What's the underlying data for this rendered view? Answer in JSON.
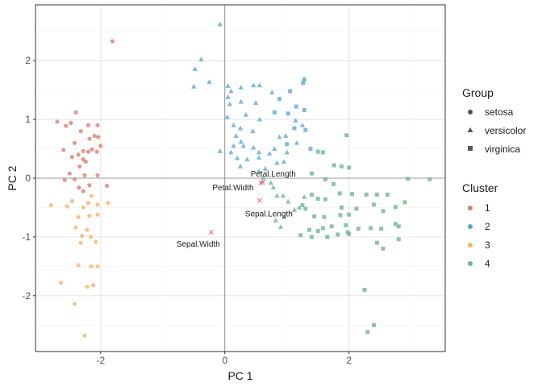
{
  "chart_data": {
    "type": "scatter",
    "xlabel": "PC 1",
    "ylabel": "PC 2",
    "xlim": [
      -3.05,
      3.55
    ],
    "ylim": [
      -2.95,
      2.95
    ],
    "xticks": [
      -2,
      0,
      2
    ],
    "yticks": [
      -2,
      -1,
      0,
      1,
      2
    ],
    "xtick_labels": [
      "-2",
      "0",
      "2"
    ],
    "ytick_labels": [
      "-2",
      "-1",
      "0",
      "1",
      "2"
    ],
    "grid": true,
    "reference_lines": {
      "x": 0,
      "y": 0
    },
    "colors": {
      "1": "#E07B6F",
      "2": "#5DA6D3",
      "3": "#F3B36B",
      "4": "#6DB38F",
      "loading": "#E0607A"
    },
    "legend": {
      "group_title": "Group",
      "groups": [
        {
          "label": "setosa",
          "shape": "circle"
        },
        {
          "label": "versicolor",
          "shape": "triangle"
        },
        {
          "label": "virginica",
          "shape": "square"
        }
      ],
      "cluster_title": "Cluster",
      "clusters": [
        {
          "label": "1",
          "color": "#E07B6F"
        },
        {
          "label": "2",
          "color": "#5DA6D3"
        },
        {
          "label": "3",
          "color": "#F3B36B"
        },
        {
          "label": "4",
          "color": "#6DB38F"
        }
      ]
    },
    "loadings": [
      {
        "label": "Petal.Length",
        "x": 0.61,
        "y": -0.07
      },
      {
        "label": "Petal.Width",
        "x": 0.58,
        "y": -0.08
      },
      {
        "label": "Sepal.Length",
        "x": 0.56,
        "y": -0.38
      },
      {
        "label": "Sepal.Width",
        "x": -0.22,
        "y": -0.92
      }
    ],
    "series": [
      {
        "name": "setosa / cluster 1",
        "group": "setosa",
        "cluster": "1",
        "points": [
          [
            -1.81,
            2.33
          ],
          [
            -2.7,
            0.96
          ],
          [
            -2.4,
            1.12
          ],
          [
            -2.56,
            0.89
          ],
          [
            -2.48,
            0.94
          ],
          [
            -2.2,
            0.9
          ],
          [
            -2.05,
            0.9
          ],
          [
            -2.32,
            0.8
          ],
          [
            -2.1,
            0.72
          ],
          [
            -2.04,
            0.7
          ],
          [
            -2.18,
            0.67
          ],
          [
            -2.42,
            0.6
          ],
          [
            -2.6,
            0.48
          ],
          [
            -2.28,
            0.46
          ],
          [
            -2.2,
            0.45
          ],
          [
            -2.14,
            0.49
          ],
          [
            -2.36,
            0.4
          ],
          [
            -2.46,
            0.36
          ],
          [
            -2.0,
            0.55
          ],
          [
            -2.28,
            0.32
          ],
          [
            -2.06,
            0.45
          ],
          [
            -2.34,
            0.2
          ],
          [
            -2.24,
            0.28
          ],
          [
            -2.5,
            0.08
          ],
          [
            -2.26,
            0.05
          ],
          [
            -2.05,
            0.05
          ],
          [
            -2.42,
            -0.02
          ],
          [
            -2.58,
            -0.03
          ],
          [
            -2.18,
            -0.12
          ],
          [
            -2.35,
            -0.16
          ],
          [
            -1.9,
            -0.13
          ],
          [
            -2.28,
            -0.22
          ]
        ]
      },
      {
        "name": "setosa / cluster 3",
        "group": "setosa",
        "cluster": "3",
        "points": [
          [
            -2.8,
            -0.46
          ],
          [
            -2.46,
            -0.39
          ],
          [
            -2.54,
            -0.48
          ],
          [
            -2.15,
            -0.3
          ],
          [
            -2.2,
            -0.42
          ],
          [
            -2.05,
            -0.45
          ],
          [
            -1.88,
            -0.42
          ],
          [
            -2.28,
            -0.5
          ],
          [
            -2.05,
            -0.62
          ],
          [
            -2.18,
            -0.64
          ],
          [
            -2.36,
            -0.66
          ],
          [
            -2.4,
            -0.84
          ],
          [
            -2.22,
            -0.88
          ],
          [
            -2.3,
            -0.98
          ],
          [
            -2.16,
            -1.0
          ],
          [
            -2.32,
            -1.1
          ],
          [
            -2.08,
            -1.08
          ],
          [
            -2.36,
            -1.48
          ],
          [
            -2.15,
            -1.5
          ],
          [
            -2.05,
            -1.5
          ],
          [
            -2.64,
            -1.78
          ],
          [
            -2.22,
            -1.85
          ],
          [
            -2.12,
            -1.82
          ],
          [
            -2.42,
            -2.14
          ],
          [
            -2.26,
            -2.68
          ]
        ]
      },
      {
        "name": "versicolor / cluster 2",
        "group": "versicolor",
        "cluster": "2",
        "points": [
          [
            -0.08,
            2.62
          ],
          [
            -0.38,
            2.02
          ],
          [
            -0.48,
            1.86
          ],
          [
            -0.5,
            1.56
          ],
          [
            -0.25,
            1.64
          ],
          [
            0.05,
            1.57
          ],
          [
            0.26,
            1.54
          ],
          [
            0.1,
            1.48
          ],
          [
            0.46,
            1.58
          ],
          [
            0.56,
            1.58
          ],
          [
            0.76,
            1.46
          ],
          [
            0.05,
            1.38
          ],
          [
            0.08,
            1.26
          ],
          [
            0.26,
            1.3
          ],
          [
            0.5,
            1.28
          ],
          [
            0.34,
            1.08
          ],
          [
            0.56,
            1.0
          ],
          [
            0.04,
            1.04
          ],
          [
            0.14,
            0.9
          ],
          [
            0.25,
            0.85
          ],
          [
            0.45,
            0.8
          ],
          [
            0.18,
            0.72
          ],
          [
            0.26,
            0.62
          ],
          [
            0.14,
            0.55
          ],
          [
            0.3,
            0.55
          ],
          [
            0.46,
            0.52
          ],
          [
            0.55,
            0.44
          ],
          [
            0.1,
            0.44
          ],
          [
            -0.08,
            0.46
          ],
          [
            0.2,
            0.34
          ],
          [
            0.36,
            0.32
          ],
          [
            0.55,
            0.35
          ],
          [
            0.72,
            0.42
          ],
          [
            0.8,
            0.5
          ],
          [
            0.88,
            0.7
          ],
          [
            0.98,
            0.72
          ],
          [
            1.14,
            0.98
          ],
          [
            1.25,
            0.9
          ],
          [
            1.0,
            0.44
          ],
          [
            1.16,
            0.6
          ],
          [
            0.25,
            0.2
          ],
          [
            0.55,
            0.12
          ],
          [
            0.65,
            0.16
          ],
          [
            0.84,
            0.26
          ],
          [
            0.95,
            0.28
          ]
        ]
      },
      {
        "name": "versicolor / cluster 4",
        "group": "versicolor",
        "cluster": "4",
        "points": [
          [
            0.62,
            0.0
          ],
          [
            0.74,
            -0.08
          ],
          [
            0.78,
            -0.16
          ],
          [
            0.84,
            -0.3
          ],
          [
            0.94,
            -0.3
          ],
          [
            1.02,
            -0.4
          ],
          [
            1.12,
            -0.54
          ],
          [
            0.82,
            -0.72
          ],
          [
            0.9,
            -0.83
          ],
          [
            0.96,
            -0.66
          ],
          [
            1.28,
            -0.32
          ],
          [
            1.2,
            -0.5
          ]
        ]
      },
      {
        "name": "virginica / cluster 2",
        "group": "virginica",
        "cluster": "2",
        "points": [
          [
            1.28,
            1.68
          ],
          [
            1.26,
            1.62
          ],
          [
            1.05,
            1.48
          ],
          [
            0.88,
            1.35
          ],
          [
            1.15,
            1.22
          ],
          [
            1.28,
            1.16
          ],
          [
            0.8,
            1.12
          ],
          [
            1.02,
            1.1
          ],
          [
            1.12,
            0.85
          ],
          [
            1.3,
            0.82
          ],
          [
            1.0,
            0.58
          ],
          [
            1.38,
            0.5
          ]
        ]
      },
      {
        "name": "virginica / cluster 4",
        "group": "virginica",
        "cluster": "4",
        "points": [
          [
            1.96,
            0.73
          ],
          [
            1.5,
            0.45
          ],
          [
            1.58,
            0.44
          ],
          [
            1.76,
            0.22
          ],
          [
            1.88,
            0.2
          ],
          [
            2.0,
            0.18
          ],
          [
            1.4,
            0.08
          ],
          [
            1.62,
            -0.02
          ],
          [
            1.75,
            -0.1
          ],
          [
            3.3,
            -0.02
          ],
          [
            2.95,
            -0.01
          ],
          [
            1.4,
            -0.28
          ],
          [
            1.5,
            -0.35
          ],
          [
            1.62,
            -0.36
          ],
          [
            1.85,
            -0.26
          ],
          [
            2.05,
            -0.27
          ],
          [
            2.28,
            -0.28
          ],
          [
            2.45,
            -0.28
          ],
          [
            2.62,
            -0.28
          ],
          [
            1.88,
            -0.5
          ],
          [
            2.12,
            -0.52
          ],
          [
            2.4,
            -0.45
          ],
          [
            2.55,
            -0.56
          ],
          [
            2.75,
            -0.49
          ],
          [
            2.9,
            -0.41
          ],
          [
            1.25,
            -0.46
          ],
          [
            1.3,
            -0.52
          ],
          [
            1.44,
            -0.65
          ],
          [
            1.6,
            -0.66
          ],
          [
            1.86,
            -0.63
          ],
          [
            2.0,
            -0.62
          ],
          [
            1.95,
            -0.8
          ],
          [
            2.15,
            -0.86
          ],
          [
            2.35,
            -0.85
          ],
          [
            2.52,
            -0.86
          ],
          [
            2.8,
            -0.82
          ],
          [
            2.75,
            -0.78
          ],
          [
            1.36,
            -0.88
          ],
          [
            1.5,
            -0.9
          ],
          [
            1.58,
            -0.85
          ],
          [
            1.72,
            -0.82
          ],
          [
            1.98,
            -0.92
          ],
          [
            1.22,
            -0.97
          ],
          [
            1.4,
            -1.0
          ],
          [
            1.65,
            -1.0
          ],
          [
            1.82,
            -0.96
          ],
          [
            2.0,
            -0.95
          ],
          [
            2.8,
            -1.04
          ],
          [
            2.45,
            -1.1
          ],
          [
            2.55,
            -1.2
          ],
          [
            2.25,
            -1.9
          ],
          [
            2.4,
            -2.5
          ],
          [
            2.3,
            -2.62
          ]
        ]
      }
    ]
  }
}
